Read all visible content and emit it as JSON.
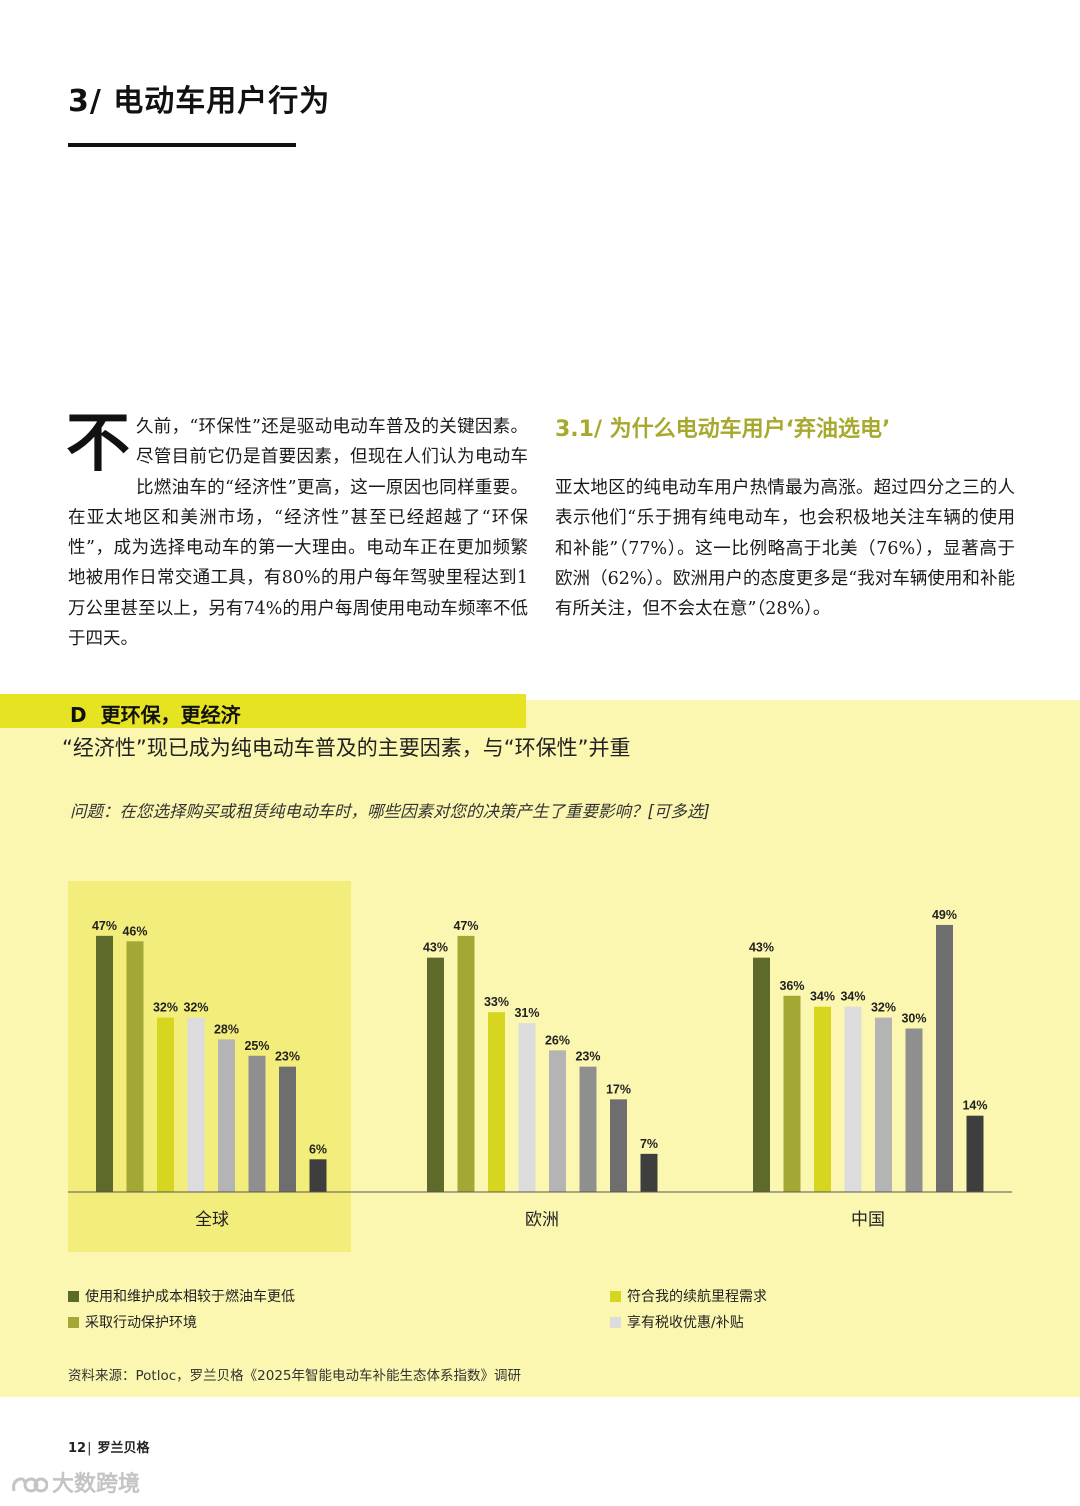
{
  "section": {
    "title": "3/ 电动车用户行为"
  },
  "intro": {
    "drop_cap": "不",
    "text": "久前，“环保性”还是驱动电动车普及的关键因素。尽管目前它仍是首要因素，但现在人们认为电动车比燃油车的“经济性”更高，这一原因也同样重要。在亚太地区和美洲市场，“经济性”甚至已经超越了“环保性”，成为选择电动车的第一大理由。电动车正在更加频繁地被用作日常交通工具，有80%的用户每年驾驶里程达到1万公里甚至以上，另有74%的用户每周使用电动车频率不低于四天。"
  },
  "subsection": {
    "heading": "3.1/ 为什么电动车用户‘弃油选电’",
    "text": "亚太地区的纯电动车用户热情最为高涨。超过四分之三的人表示他们“乐于拥有纯电动车，也会积极地关注车辆的使用和补能”（77%）。这一比例略高于北美（76%），显著高于欧洲（62%）。欧洲用户的态度更多是“我对车辆使用和补能有所关注，但不会太在意”（28%）。"
  },
  "figure": {
    "letter": "D",
    "title": "更环保，更经济",
    "subtitle": "“经济性”现已成为纯电动车普及的主要因素，与“环保性”并重",
    "question": "问题：在您选择购买或租赁纯电动车时，哪些因素对您的决策产生了重要影响？[可多选]"
  },
  "chart_data": {
    "type": "bar",
    "categories": [
      "全球",
      "欧洲",
      "中国"
    ],
    "highlighted_category": "全球",
    "value_suffix": "%",
    "ylim": [
      0,
      50
    ],
    "series": [
      {
        "name": "使用和维护成本相较于燃油车更低",
        "color": "#5e6a2a",
        "values": [
          47,
          43,
          43
        ]
      },
      {
        "name": "采取行动保护环境",
        "color": "#a3a835",
        "values": [
          46,
          47,
          36
        ]
      },
      {
        "name": "符合我的续航里程需求",
        "color": "#d6d620",
        "values": [
          32,
          33,
          34
        ]
      },
      {
        "name": "享有税收优惠/补贴",
        "color": "#dcdcdc",
        "values": [
          32,
          31,
          34
        ]
      },
      {
        "color": "#b4b4b4",
        "values": [
          28,
          26,
          32
        ]
      },
      {
        "color": "#8f8f8f",
        "values": [
          25,
          23,
          30
        ]
      },
      {
        "color": "#6e6e6e",
        "values": [
          23,
          17,
          49
        ]
      },
      {
        "color": "#3e3e3e",
        "values": [
          6,
          7,
          14
        ]
      }
    ]
  },
  "source": "资料来源：Potloc，罗兰贝格《2025年智能电动车补能生态体系指数》调研",
  "footer": {
    "page_number": "12",
    "separator": "|",
    "brand": "罗兰贝格"
  },
  "watermark": {
    "text": "大数跨境"
  }
}
